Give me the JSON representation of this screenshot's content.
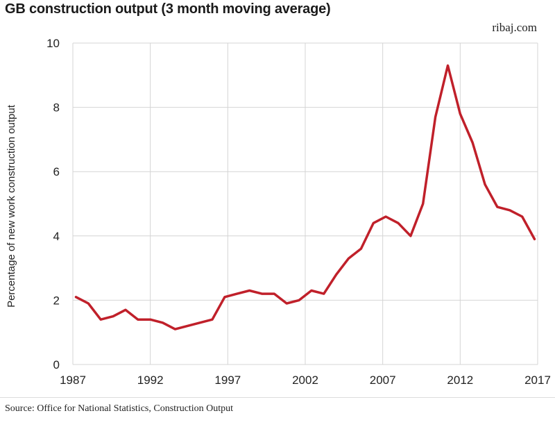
{
  "chart_data": {
    "type": "line",
    "title": "GB construction output (3 month moving average)",
    "brand": "ribaj.com",
    "source": "Source: Office for National Statistics, Construction Output",
    "ylabel": "Percentage of new work construction output",
    "xlabel": "",
    "xlim": [
      1987,
      2017
    ],
    "ylim": [
      0,
      10
    ],
    "x_ticks": [
      1987,
      1992,
      1997,
      2002,
      2007,
      2012,
      2017
    ],
    "y_ticks": [
      0,
      2,
      4,
      6,
      8,
      10
    ],
    "grid": true,
    "line_color": "#c0202a",
    "series": [
      {
        "x": [
          1987.2,
          1988,
          1988.8,
          1989.6,
          1990.4,
          1991.2,
          1992,
          1992.8,
          1993.6,
          1994.4,
          1995.2,
          1996,
          1996.8,
          1997.6,
          1998.4,
          1999.2,
          2000,
          2000.8,
          2001.6,
          2002.4,
          2003.2,
          2004,
          2004.8,
          2005.6,
          2006.4,
          2007.2,
          2008,
          2008.8,
          2009.6,
          2010.4,
          2011.2,
          2012,
          2012.8,
          2013.6,
          2014.4,
          2015.2,
          2016,
          2016.8
        ],
        "values": [
          2.1,
          1.9,
          1.4,
          1.5,
          1.7,
          1.4,
          1.4,
          1.3,
          1.1,
          1.2,
          1.3,
          1.4,
          2.1,
          2.2,
          2.3,
          2.2,
          2.2,
          1.9,
          2.0,
          2.3,
          2.2,
          2.8,
          3.3,
          3.6,
          4.4,
          4.6,
          4.4,
          4.0,
          5.0,
          7.7,
          9.3,
          7.8,
          6.9,
          5.6,
          4.9,
          4.8,
          4.6,
          3.9
        ]
      }
    ]
  }
}
